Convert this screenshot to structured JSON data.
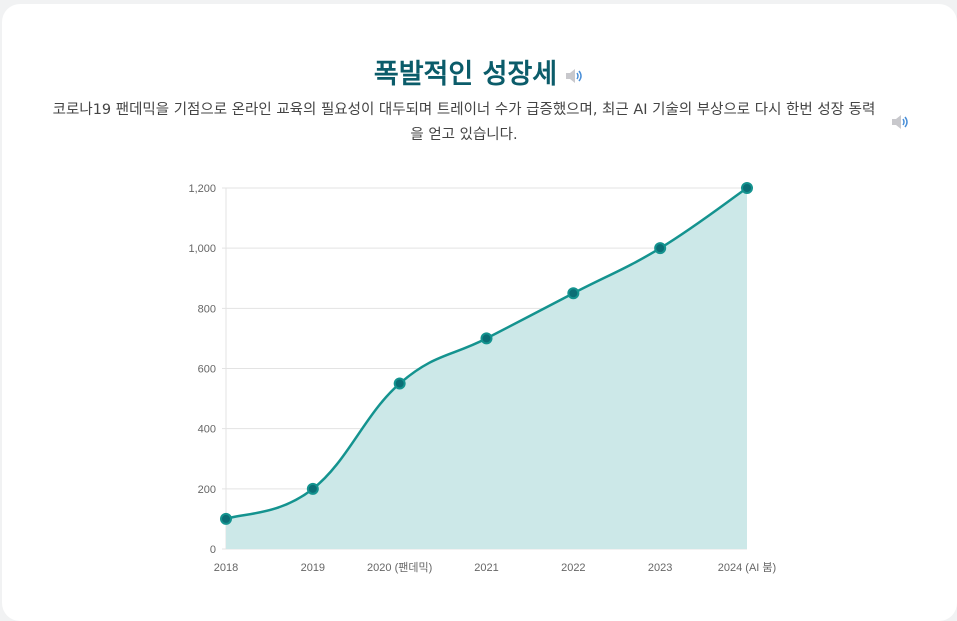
{
  "header": {
    "title": "폭발적인 성장세",
    "subtitle": "코로나19 팬데믹을 기점으로 온라인 교육의 필요성이 대두되며 트레이너 수가 급증했으며, 최근 AI 기술의 부상으로 다시 한번 성장 동력을 얻고 있습니다.",
    "title_icon": "speaker-icon",
    "subtitle_icon": "speaker-icon"
  },
  "colors": {
    "title": "#0b5c6a",
    "line": "#14938f",
    "fill": "#cce8e8",
    "point": "#0b6e75"
  },
  "chart_data": {
    "type": "area",
    "categories": [
      "2018",
      "2019",
      "2020 (팬데믹)",
      "2021",
      "2022",
      "2023",
      "2024 (AI 붐)"
    ],
    "values": [
      100,
      200,
      550,
      700,
      850,
      1000,
      1200
    ],
    "ylim": [
      0,
      1200
    ],
    "yticks": [
      "0",
      "200",
      "400",
      "600",
      "800",
      "1,000",
      "1,200"
    ],
    "grid": true,
    "legend": "none"
  }
}
